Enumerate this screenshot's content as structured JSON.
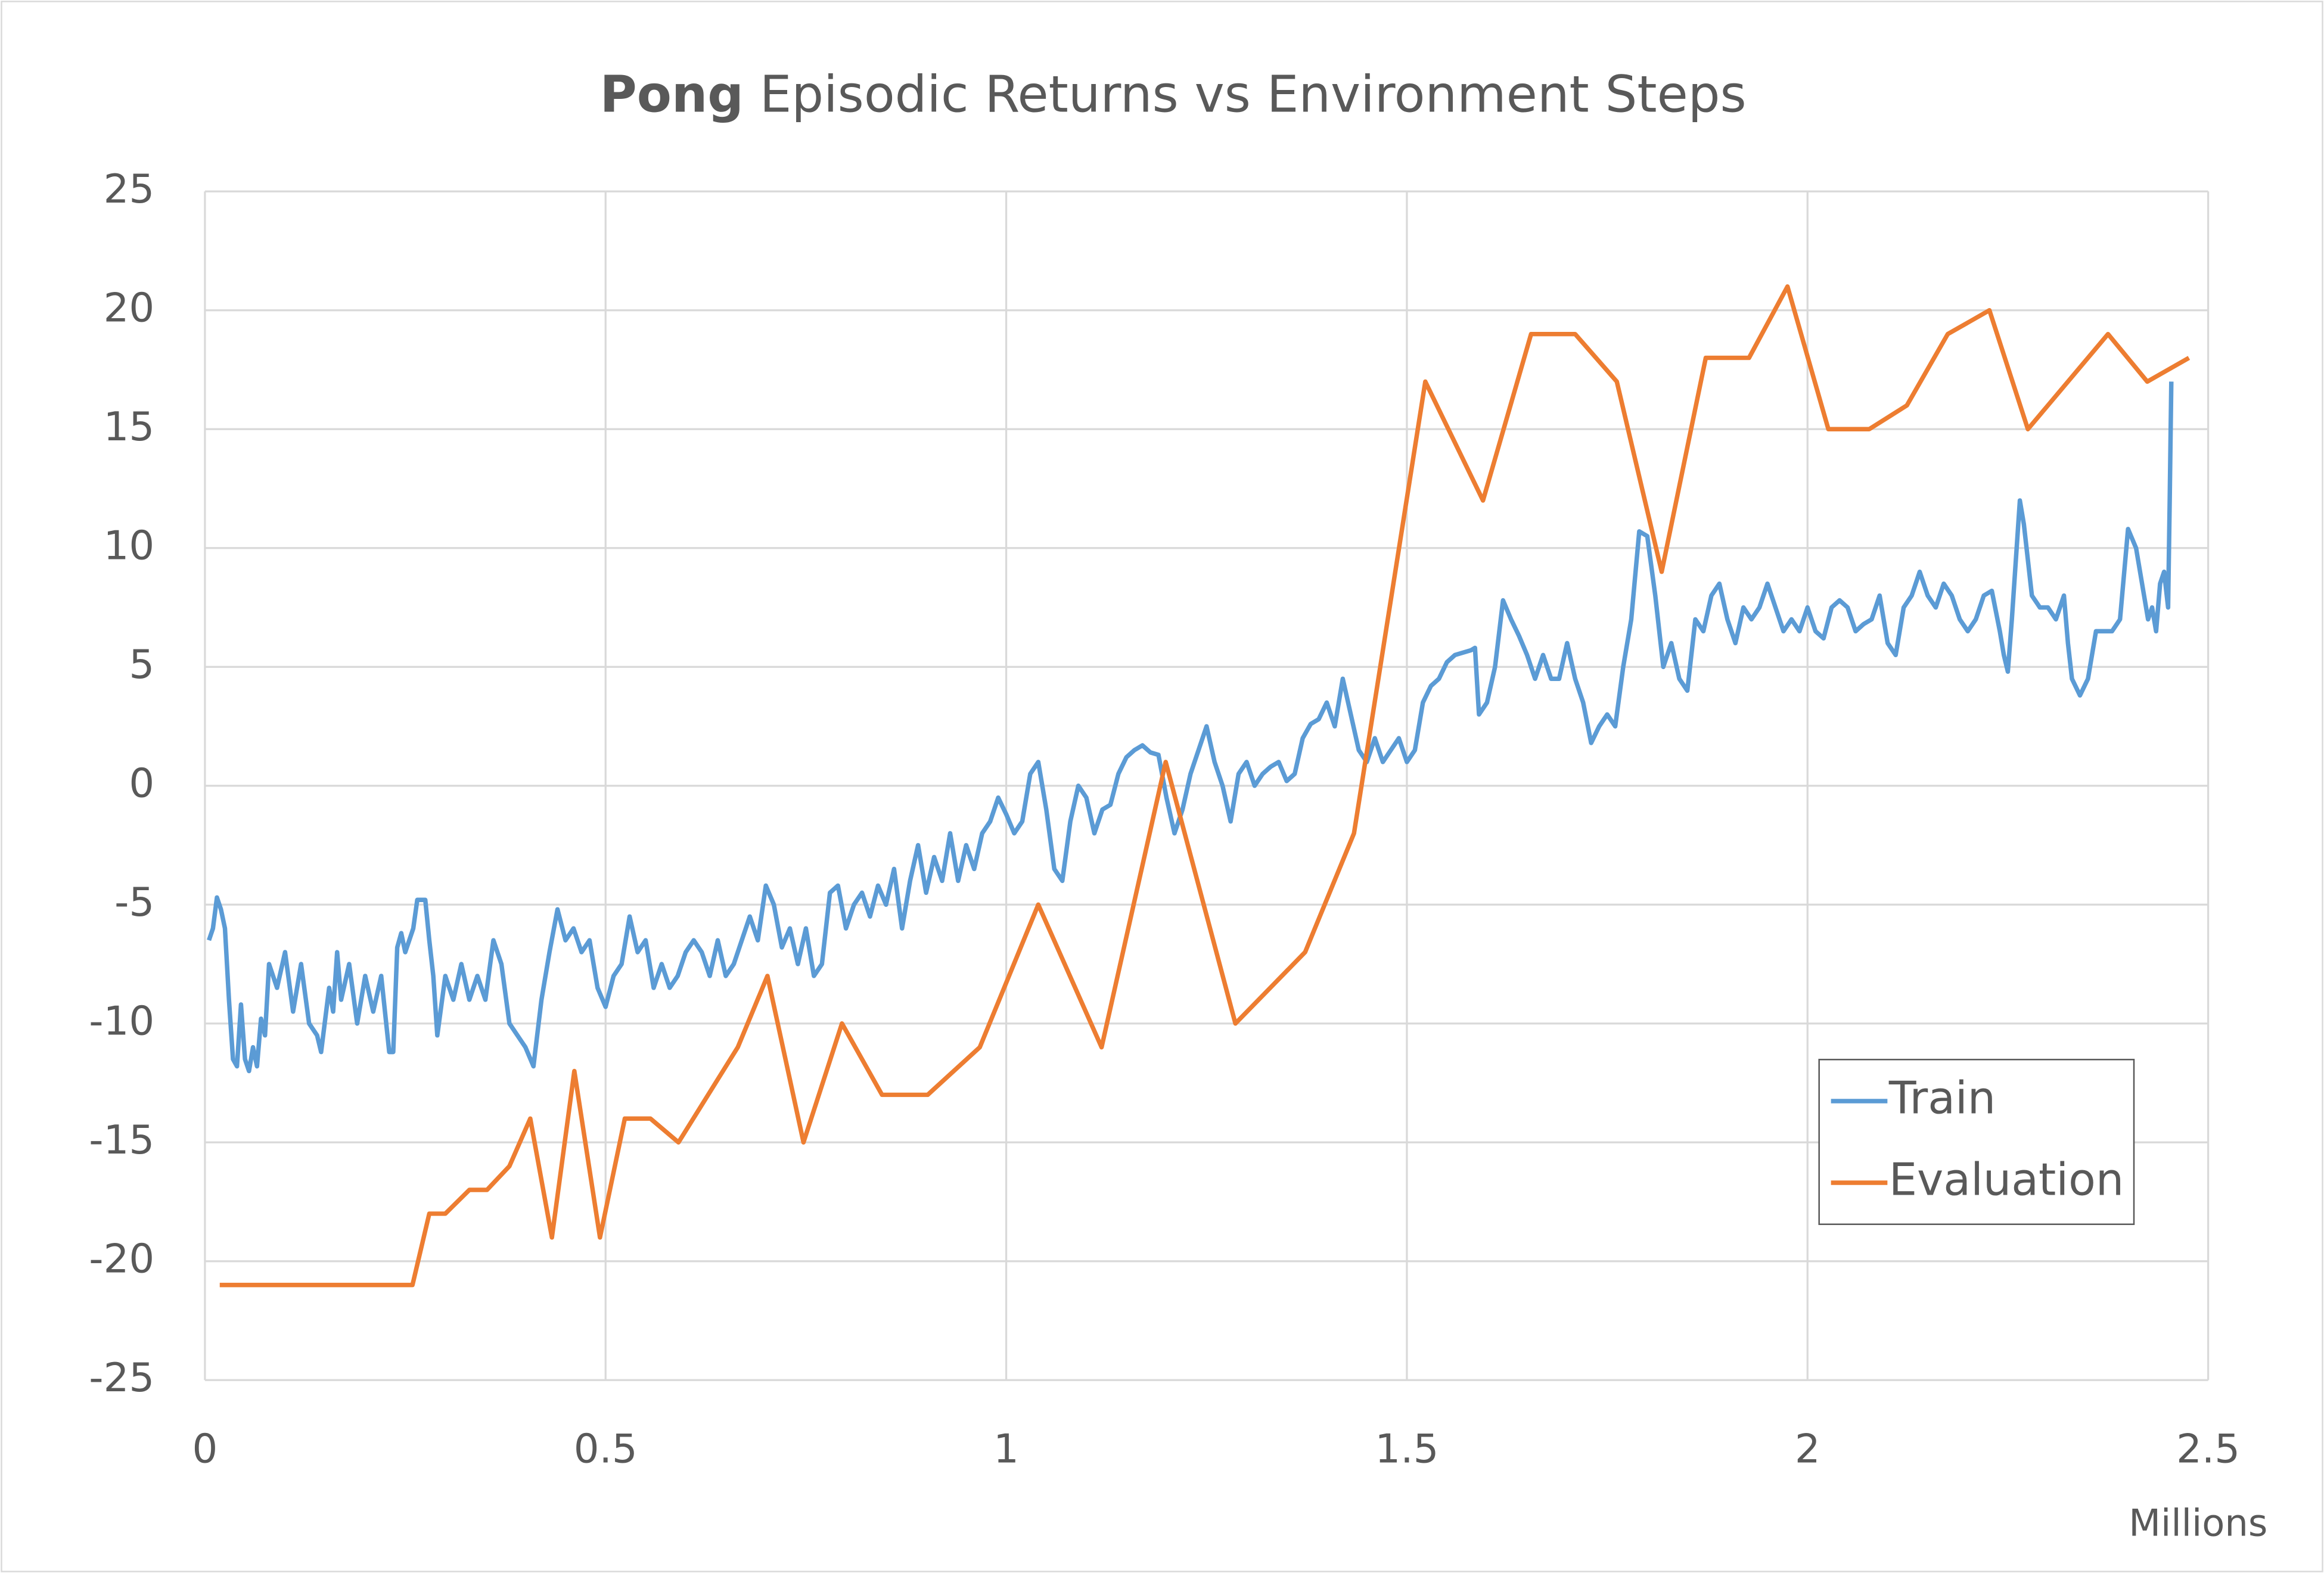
{
  "chart_data": {
    "type": "line",
    "title_emphasis": "Pong",
    "title": "Episodic Returns vs Environment Steps",
    "x_label": "Millions",
    "xlim": [
      0,
      2.5
    ],
    "xticks": [
      0,
      0.5,
      1,
      1.5,
      2,
      2.5
    ],
    "ylim": [
      -25,
      25
    ],
    "yticks": [
      -25,
      -20,
      -15,
      -10,
      -5,
      0,
      5,
      10,
      15,
      20,
      25
    ],
    "grid": true,
    "legend_position": "lower right",
    "series": [
      {
        "name": "Train",
        "color": "#5b9bd5",
        "x": [
          0.005,
          0.01,
          0.015,
          0.02,
          0.025,
          0.03,
          0.035,
          0.04,
          0.045,
          0.05,
          0.055,
          0.06,
          0.065,
          0.07,
          0.075,
          0.08,
          0.09,
          0.1,
          0.11,
          0.12,
          0.13,
          0.14,
          0.145,
          0.155,
          0.16,
          0.165,
          0.17,
          0.18,
          0.19,
          0.2,
          0.21,
          0.22,
          0.23,
          0.235,
          0.24,
          0.245,
          0.25,
          0.26,
          0.265,
          0.275,
          0.28,
          0.285,
          0.29,
          0.3,
          0.31,
          0.32,
          0.33,
          0.34,
          0.35,
          0.36,
          0.37,
          0.38,
          0.39,
          0.4,
          0.41,
          0.42,
          0.43,
          0.44,
          0.45,
          0.46,
          0.47,
          0.48,
          0.49,
          0.5,
          0.51,
          0.52,
          0.53,
          0.54,
          0.55,
          0.56,
          0.57,
          0.58,
          0.59,
          0.6,
          0.61,
          0.62,
          0.63,
          0.64,
          0.65,
          0.66,
          0.67,
          0.68,
          0.69,
          0.7,
          0.71,
          0.72,
          0.73,
          0.74,
          0.75,
          0.76,
          0.77,
          0.78,
          0.79,
          0.8,
          0.81,
          0.82,
          0.83,
          0.84,
          0.85,
          0.86,
          0.87,
          0.88,
          0.89,
          0.9,
          0.91,
          0.92,
          0.93,
          0.94,
          0.95,
          0.96,
          0.97,
          0.98,
          0.99,
          1.0,
          1.01,
          1.02,
          1.03,
          1.04,
          1.05,
          1.06,
          1.07,
          1.08,
          1.09,
          1.1,
          1.11,
          1.12,
          1.13,
          1.14,
          1.15,
          1.16,
          1.17,
          1.18,
          1.19,
          1.2,
          1.21,
          1.22,
          1.23,
          1.24,
          1.25,
          1.26,
          1.27,
          1.28,
          1.29,
          1.3,
          1.31,
          1.32,
          1.33,
          1.34,
          1.35,
          1.36,
          1.37,
          1.38,
          1.39,
          1.4,
          1.41,
          1.42,
          1.43,
          1.44,
          1.45,
          1.46,
          1.47,
          1.48,
          1.49,
          1.5,
          1.51,
          1.52,
          1.53,
          1.54,
          1.55,
          1.56,
          1.57,
          1.58,
          1.585,
          1.59,
          1.6,
          1.61,
          1.62,
          1.63,
          1.64,
          1.65,
          1.66,
          1.67,
          1.68,
          1.69,
          1.7,
          1.71,
          1.72,
          1.73,
          1.74,
          1.75,
          1.76,
          1.77,
          1.78,
          1.79,
          1.8,
          1.81,
          1.82,
          1.83,
          1.84,
          1.85,
          1.86,
          1.87,
          1.88,
          1.89,
          1.9,
          1.91,
          1.92,
          1.93,
          1.94,
          1.95,
          1.96,
          1.97,
          1.98,
          1.99,
          2.0,
          2.01,
          2.02,
          2.03,
          2.04,
          2.05,
          2.06,
          2.07,
          2.08,
          2.09,
          2.1,
          2.11,
          2.12,
          2.13,
          2.14,
          2.15,
          2.16,
          2.17,
          2.18,
          2.19,
          2.2,
          2.21,
          2.22,
          2.23,
          2.24,
          2.245,
          2.25,
          2.255,
          2.265,
          2.27,
          2.28,
          2.29,
          2.3,
          2.31,
          2.32,
          2.325,
          2.33,
          2.34,
          2.35,
          2.36,
          2.37,
          2.38,
          2.39,
          2.4,
          2.41,
          2.42,
          2.425,
          2.43,
          2.435,
          2.44,
          2.445,
          2.45,
          2.452,
          2.454
        ],
        "values": [
          -6.5,
          -6,
          -4.7,
          -5.2,
          -6,
          -9,
          -11.5,
          -11.8,
          -9.2,
          -11.5,
          -12,
          -11,
          -11.8,
          -9.8,
          -10.5,
          -7.5,
          -8.5,
          -7,
          -9.5,
          -7.5,
          -10,
          -10.5,
          -11.2,
          -8.5,
          -9.5,
          -7,
          -9,
          -7.5,
          -10,
          -8,
          -9.5,
          -8,
          -11.2,
          -11.2,
          -6.8,
          -6.2,
          -7,
          -6,
          -4.8,
          -4.8,
          -6.5,
          -8,
          -10.5,
          -8,
          -9,
          -7.5,
          -9,
          -8,
          -9,
          -6.5,
          -7.5,
          -10,
          -10.5,
          -11,
          -11.8,
          -9,
          -7,
          -5.2,
          -6.5,
          -6,
          -7,
          -6.5,
          -8.5,
          -9.3,
          -8,
          -7.5,
          -5.5,
          -7,
          -6.5,
          -8.5,
          -7.5,
          -8.5,
          -8,
          -7,
          -6.5,
          -7,
          -8,
          -6.5,
          -8,
          -7.5,
          -6.5,
          -5.5,
          -6.5,
          -4.2,
          -5,
          -6.8,
          -6,
          -7.5,
          -6,
          -8,
          -7.5,
          -4.5,
          -4.2,
          -6,
          -5,
          -4.5,
          -5.5,
          -4.2,
          -5,
          -3.5,
          -6,
          -4,
          -2.5,
          -4.5,
          -3,
          -4,
          -2,
          -4,
          -2.5,
          -3.5,
          -2,
          -1.5,
          -0.5,
          -1.2,
          -2,
          -1.5,
          0.5,
          1,
          -1,
          -3.5,
          -4,
          -1.5,
          0,
          -0.5,
          -2,
          -1,
          -0.8,
          0.5,
          1.2,
          1.5,
          1.7,
          1.4,
          1.3,
          -0.5,
          -2,
          -1,
          0.5,
          1.5,
          2.5,
          1,
          0,
          -1.5,
          0.5,
          1,
          0,
          0.5,
          0.8,
          1,
          0.2,
          0.5,
          2,
          2.6,
          2.8,
          3.5,
          2.5,
          4.5,
          3,
          1.5,
          1,
          2,
          1,
          1.5,
          2,
          1,
          1.5,
          3.5,
          4.2,
          4.5,
          5.2,
          5.5,
          5.6,
          5.7,
          5.8,
          3,
          3.5,
          5,
          7.8,
          7,
          6.3,
          5.5,
          4.5,
          5.5,
          4.5,
          4.5,
          6,
          4.5,
          3.5,
          1.8,
          2.5,
          3,
          2.5,
          5,
          7,
          10.7,
          10.5,
          8,
          5,
          6,
          4.5,
          4,
          7,
          6.5,
          8,
          8.5,
          7,
          6,
          7.5,
          7,
          7.5,
          8.5,
          7.5,
          6.5,
          7,
          6.5,
          7.5,
          6.5,
          6.2,
          7.5,
          7.8,
          7.5,
          6.5,
          6.8,
          7,
          8,
          6,
          5.5,
          7.5,
          8,
          9,
          8,
          7.5,
          8.5,
          8,
          7,
          6.5,
          7,
          8,
          8.2,
          6.5,
          5.5,
          4.8,
          7,
          12,
          11,
          8,
          7.5,
          7.5,
          7,
          8,
          6,
          4.5,
          3.8,
          4.5,
          6.5,
          6.5,
          6.5,
          7,
          10.8,
          10,
          8,
          7,
          7.5,
          6.5,
          8.5,
          9,
          7.5,
          12,
          17
        ]
      },
      {
        "name": "Evaluation",
        "color": "#ed7d31",
        "x": [
          0.0185,
          0.259,
          0.28,
          0.3,
          0.33,
          0.352,
          0.38,
          0.406,
          0.433,
          0.461,
          0.493,
          0.524,
          0.556,
          0.591,
          0.665,
          0.702,
          0.747,
          0.795,
          0.845,
          0.902,
          0.967,
          1.04,
          1.119,
          1.199,
          1.286,
          1.373,
          1.434,
          1.523,
          1.595,
          1.655,
          1.71,
          1.762,
          1.818,
          1.873,
          1.927,
          1.975,
          2.026,
          2.077,
          2.124,
          2.175,
          2.227,
          2.275,
          2.375,
          2.424,
          2.476
        ],
        "values": [
          -21,
          -21,
          -18,
          -18,
          -17,
          -17,
          -16,
          -14,
          -19,
          -12,
          -19,
          -14,
          -14,
          -15,
          -11,
          -8,
          -15,
          -10,
          -13,
          -13,
          -11,
          -5,
          -11,
          1,
          -10,
          -7,
          -2,
          17,
          12,
          19,
          19,
          17,
          9,
          18,
          18,
          21,
          15,
          15,
          16,
          19,
          20,
          15,
          19,
          17,
          18
        ]
      }
    ]
  }
}
